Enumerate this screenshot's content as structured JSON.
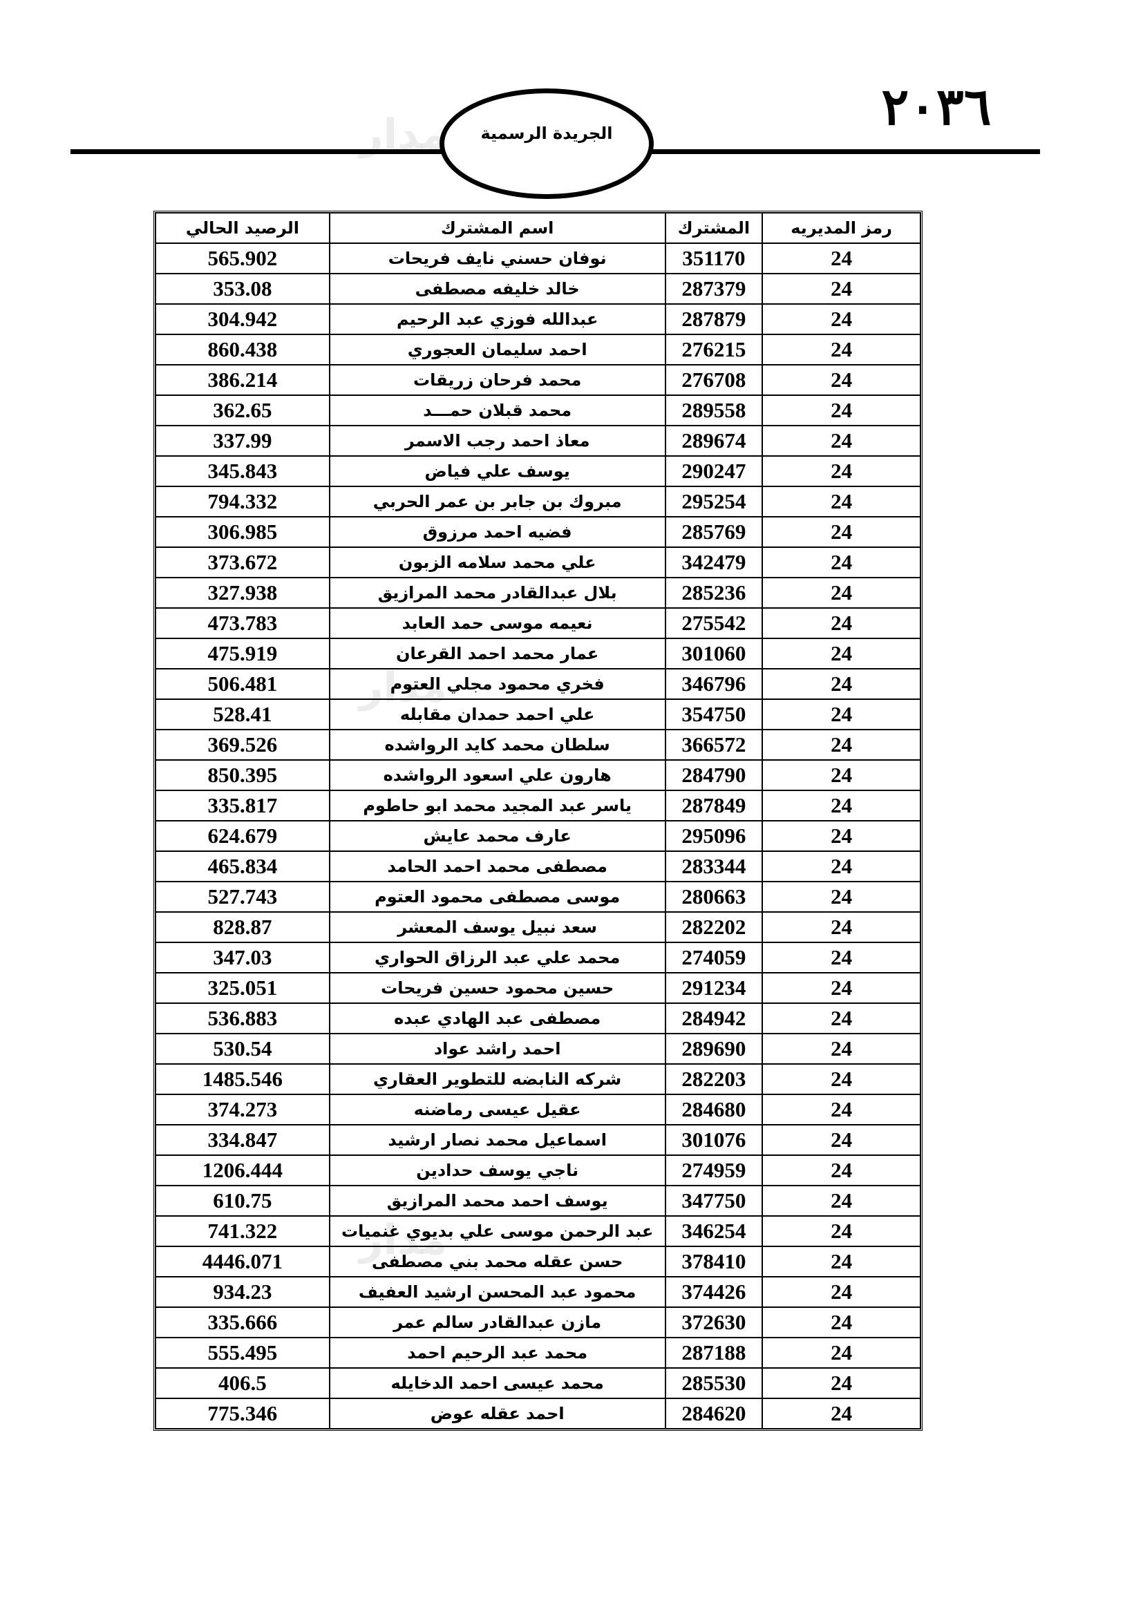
{
  "header": {
    "page_number": "٢٠٣٦",
    "publication": "الجريدة الرسمية",
    "watermark": "مدار الساعة الإخبارية"
  },
  "table": {
    "columns": [
      "رمز المديريه",
      "المشترك",
      "اسم المشترك",
      "الرصيد الحالي"
    ],
    "rows": [
      {
        "dir": "24",
        "sub": "351170",
        "name": "نوفان حسني نايف فريحات",
        "bal": "565.902"
      },
      {
        "dir": "24",
        "sub": "287379",
        "name": "خالد خليفه مصطفى",
        "bal": "353.08"
      },
      {
        "dir": "24",
        "sub": "287879",
        "name": "عبدالله فوزي عبد الرحيم",
        "bal": "304.942"
      },
      {
        "dir": "24",
        "sub": "276215",
        "name": "احمد سليمان العجوري",
        "bal": "860.438"
      },
      {
        "dir": "24",
        "sub": "276708",
        "name": "محمد فرحان زريقات",
        "bal": "386.214"
      },
      {
        "dir": "24",
        "sub": "289558",
        "name": "محمد قبلان حمـــد",
        "bal": "362.65"
      },
      {
        "dir": "24",
        "sub": "289674",
        "name": "معاذ احمد رجب الاسمر",
        "bal": "337.99"
      },
      {
        "dir": "24",
        "sub": "290247",
        "name": "يوسف علي فياض",
        "bal": "345.843"
      },
      {
        "dir": "24",
        "sub": "295254",
        "name": "مبروك بن جابر بن عمر الحربي",
        "bal": "794.332"
      },
      {
        "dir": "24",
        "sub": "285769",
        "name": "فضيه احمد مرزوق",
        "bal": "306.985"
      },
      {
        "dir": "24",
        "sub": "342479",
        "name": "علي محمد سلامه الزبون",
        "bal": "373.672"
      },
      {
        "dir": "24",
        "sub": "285236",
        "name": "بلال عبدالقادر محمد المرازيق",
        "bal": "327.938"
      },
      {
        "dir": "24",
        "sub": "275542",
        "name": "نعيمه موسى حمد العابد",
        "bal": "473.783"
      },
      {
        "dir": "24",
        "sub": "301060",
        "name": "عمار محمد احمد القرعان",
        "bal": "475.919"
      },
      {
        "dir": "24",
        "sub": "346796",
        "name": "فخري محمود مجلي العتوم",
        "bal": "506.481"
      },
      {
        "dir": "24",
        "sub": "354750",
        "name": "علي احمد حمدان مقابله",
        "bal": "528.41"
      },
      {
        "dir": "24",
        "sub": "366572",
        "name": "سلطان محمد كايد الرواشده",
        "bal": "369.526"
      },
      {
        "dir": "24",
        "sub": "284790",
        "name": "هارون علي اسعود الرواشده",
        "bal": "850.395"
      },
      {
        "dir": "24",
        "sub": "287849",
        "name": "ياسر عبد المجيد محمد ابو حاطوم",
        "bal": "335.817"
      },
      {
        "dir": "24",
        "sub": "295096",
        "name": "عارف محمد عايش",
        "bal": "624.679"
      },
      {
        "dir": "24",
        "sub": "283344",
        "name": "مصطفى محمد احمد الحامد",
        "bal": "465.834"
      },
      {
        "dir": "24",
        "sub": "280663",
        "name": "موسى مصطفى محمود العتوم",
        "bal": "527.743"
      },
      {
        "dir": "24",
        "sub": "282202",
        "name": "سعد نبيل يوسف المعشر",
        "bal": "828.87"
      },
      {
        "dir": "24",
        "sub": "274059",
        "name": "محمد علي عبد الرزاق الحواري",
        "bal": "347.03"
      },
      {
        "dir": "24",
        "sub": "291234",
        "name": "حسين محمود حسين فريحات",
        "bal": "325.051"
      },
      {
        "dir": "24",
        "sub": "284942",
        "name": "مصطفى عبد الهادي عبده",
        "bal": "536.883"
      },
      {
        "dir": "24",
        "sub": "289690",
        "name": "احمد راشد عواد",
        "bal": "530.54"
      },
      {
        "dir": "24",
        "sub": "282203",
        "name": "شركه النابضه للتطوير العقاري",
        "bal": "1485.546"
      },
      {
        "dir": "24",
        "sub": "284680",
        "name": "عقيل عيسى رماضنه",
        "bal": "374.273"
      },
      {
        "dir": "24",
        "sub": "301076",
        "name": "اسماعيل محمد نصار ارشيد",
        "bal": "334.847"
      },
      {
        "dir": "24",
        "sub": "274959",
        "name": "ناجي يوسف حدادين",
        "bal": "1206.444"
      },
      {
        "dir": "24",
        "sub": "347750",
        "name": "يوسف احمد محمد المرازيق",
        "bal": "610.75"
      },
      {
        "dir": "24",
        "sub": "346254",
        "name": "عبد الرحمن موسى علي بديوي غنميات",
        "bal": "741.322"
      },
      {
        "dir": "24",
        "sub": "378410",
        "name": "حسن عقله محمد بني مصطفى",
        "bal": "4446.071"
      },
      {
        "dir": "24",
        "sub": "374426",
        "name": "محمود عبد المحسن ارشيد العفيف",
        "bal": "934.23"
      },
      {
        "dir": "24",
        "sub": "372630",
        "name": "مازن عبدالقادر سالم عمر",
        "bal": "335.666"
      },
      {
        "dir": "24",
        "sub": "287188",
        "name": "محمد عبد الرحيم احمد",
        "bal": "555.495"
      },
      {
        "dir": "24",
        "sub": "285530",
        "name": "محمد عيسى احمد الدخايله",
        "bal": "406.5"
      },
      {
        "dir": "24",
        "sub": "284620",
        "name": "احمد عقله عوض",
        "bal": "775.346"
      }
    ]
  }
}
